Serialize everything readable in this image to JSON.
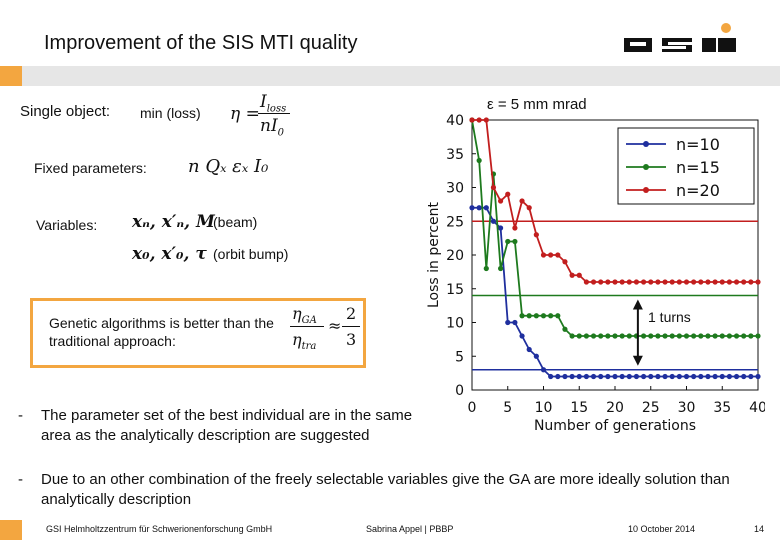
{
  "header": {
    "title": "Improvement of the SIS MTI quality",
    "logo_text": "GSI"
  },
  "left": {
    "single_object_label": "Single object:",
    "min_loss": "min (loss)",
    "eta_formula": {
      "lhs": "η =",
      "num": "I",
      "num_sub": "loss",
      "den": "nI",
      "den_sub": "0"
    },
    "fixed_label": "Fixed parameters:",
    "fixed_params": "n Qₓ εₓ I₀",
    "variables_label": "Variables:",
    "var_beam": "xₙ, x′ₙ, M",
    "var_beam_note": "(beam)",
    "var_orbit": "x₀, x′₀, τ",
    "var_orbit_note": "(orbit bump)",
    "ga_text": "Genetic algorithms is better than the traditional approach:",
    "ga_ratio": {
      "num": "η",
      "num_sub": "GA",
      "den": "η",
      "den_sub": "tra",
      "approx": "≈",
      "frac_num": "2",
      "frac_den": "3"
    }
  },
  "bullets": [
    {
      "dash": "-",
      "text": "The parameter set of the best individual are in the same area as the analytically description are suggested"
    },
    {
      "dash": "-",
      "text": "Due to an other combination of the freely selectable variables give the GA are more ideally solution than analytically description"
    }
  ],
  "footer": {
    "org": "GSI Helmholtzzentrum für Schwerionenforschung GmbH",
    "author": "Sabrina Appel | PBBP",
    "date": "10 October 2014",
    "page": "14"
  },
  "chart_annotations": {
    "epsilon": "ε = 5 mm mrad",
    "turns": "1 turns"
  },
  "chart_data": {
    "type": "line",
    "title": "",
    "xlabel": "Number of generations",
    "ylabel": "Loss in percent",
    "xlim": [
      0,
      40
    ],
    "ylim": [
      0,
      40
    ],
    "xticks": [
      0,
      5,
      10,
      15,
      20,
      25,
      30,
      35,
      40
    ],
    "yticks": [
      0,
      5,
      10,
      15,
      20,
      25,
      30,
      35,
      40
    ],
    "legend_position": "top-right",
    "series": [
      {
        "name": "n=10",
        "color": "#1f2f9e",
        "x": [
          0,
          1,
          2,
          3,
          4,
          5,
          6,
          7,
          8,
          9,
          10,
          11,
          12,
          13,
          14,
          15,
          16,
          17,
          18,
          19,
          20,
          21,
          22,
          23,
          24,
          25,
          26,
          27,
          28,
          29,
          30,
          31,
          32,
          33,
          34,
          35,
          36,
          37,
          38,
          39,
          40
        ],
        "y": [
          27,
          27,
          27,
          25,
          24,
          10,
          10,
          8,
          6,
          5,
          3,
          2,
          2,
          2,
          2,
          2,
          2,
          2,
          2,
          2,
          2,
          2,
          2,
          2,
          2,
          2,
          2,
          2,
          2,
          2,
          2,
          2,
          2,
          2,
          2,
          2,
          2,
          2,
          2,
          2,
          2
        ],
        "baseline": 3
      },
      {
        "name": "n=15",
        "color": "#1e7a1e",
        "x": [
          0,
          1,
          2,
          3,
          4,
          5,
          6,
          7,
          8,
          9,
          10,
          11,
          12,
          13,
          14,
          15,
          16,
          17,
          18,
          19,
          20,
          21,
          22,
          23,
          24,
          25,
          26,
          27,
          28,
          29,
          30,
          31,
          32,
          33,
          34,
          35,
          36,
          37,
          38,
          39,
          40
        ],
        "y": [
          40,
          34,
          18,
          32,
          18,
          22,
          22,
          11,
          11,
          11,
          11,
          11,
          11,
          9,
          8,
          8,
          8,
          8,
          8,
          8,
          8,
          8,
          8,
          8,
          8,
          8,
          8,
          8,
          8,
          8,
          8,
          8,
          8,
          8,
          8,
          8,
          8,
          8,
          8,
          8,
          8
        ],
        "baseline": 14
      },
      {
        "name": "n=20",
        "color": "#c21e1e",
        "x": [
          0,
          1,
          2,
          3,
          4,
          5,
          6,
          7,
          8,
          9,
          10,
          11,
          12,
          13,
          14,
          15,
          16,
          17,
          18,
          19,
          20,
          21,
          22,
          23,
          24,
          25,
          26,
          27,
          28,
          29,
          30,
          31,
          32,
          33,
          34,
          35,
          36,
          37,
          38,
          39,
          40
        ],
        "y": [
          40,
          40,
          40,
          30,
          28,
          29,
          24,
          28,
          27,
          23,
          20,
          20,
          20,
          19,
          17,
          17,
          16,
          16,
          16,
          16,
          16,
          16,
          16,
          16,
          16,
          16,
          16,
          16,
          16,
          16,
          16,
          16,
          16,
          16,
          16,
          16,
          16,
          16,
          16,
          16,
          16
        ],
        "baseline": 25
      }
    ]
  }
}
